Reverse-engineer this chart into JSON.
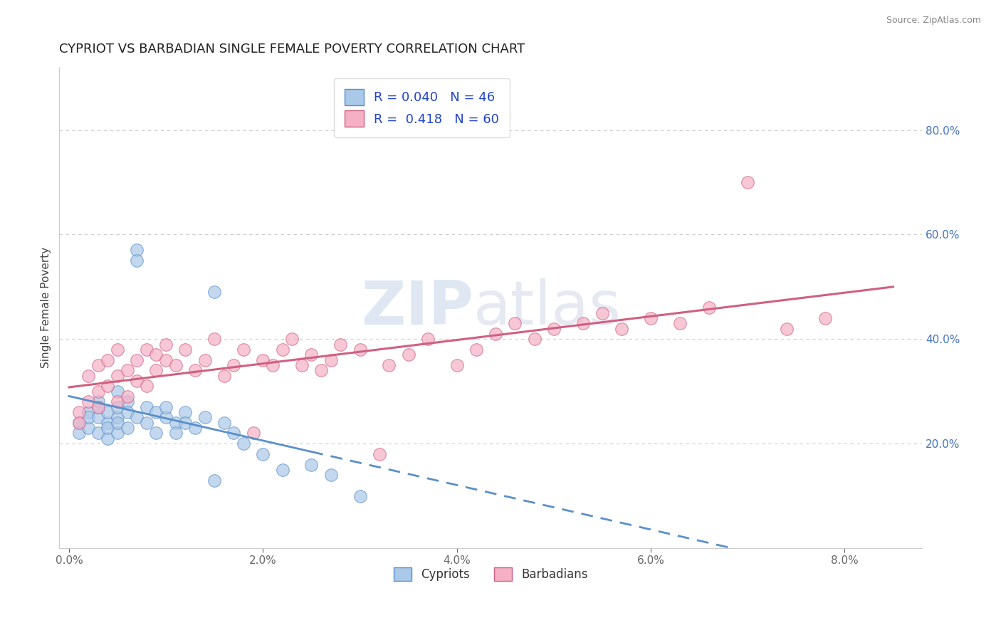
{
  "title": "CYPRIOT VS BARBADIAN SINGLE FEMALE POVERTY CORRELATION CHART",
  "source": "Source: ZipAtlas.com",
  "ylabel": "Single Female Poverty",
  "x_tick_labels": [
    "0.0%",
    "2.0%",
    "4.0%",
    "6.0%",
    "8.0%"
  ],
  "x_tick_values": [
    0.0,
    0.02,
    0.04,
    0.06,
    0.08
  ],
  "y_tick_labels_right": [
    "20.0%",
    "40.0%",
    "60.0%",
    "80.0%"
  ],
  "y_tick_values": [
    0.2,
    0.4,
    0.6,
    0.8
  ],
  "xlim": [
    -0.001,
    0.088
  ],
  "ylim": [
    0.0,
    0.92
  ],
  "legend_labels": [
    "Cypriots",
    "Barbadians"
  ],
  "cypriot_color": "#aac8e8",
  "barbadian_color": "#f5b0c5",
  "cypriot_edge_color": "#5b8fc9",
  "barbadian_edge_color": "#d06080",
  "cypriot_line_color": "#5b8fc9",
  "barbadian_line_color": "#d06080",
  "R_cypriot": 0.04,
  "N_cypriot": 46,
  "R_barbadian": 0.418,
  "N_barbadian": 60,
  "title_color": "#222222",
  "title_fontsize": 13,
  "right_tick_color": "#4472c4",
  "watermark_zip": "ZIP",
  "watermark_atlas": "atlas",
  "background_color": "#ffffff",
  "grid_color": "#cccccc",
  "cypriot_points_x": [
    0.001,
    0.001,
    0.002,
    0.002,
    0.002,
    0.003,
    0.003,
    0.003,
    0.003,
    0.004,
    0.004,
    0.004,
    0.004,
    0.005,
    0.005,
    0.005,
    0.005,
    0.005,
    0.006,
    0.006,
    0.006,
    0.007,
    0.007,
    0.007,
    0.008,
    0.008,
    0.009,
    0.009,
    0.01,
    0.01,
    0.011,
    0.011,
    0.012,
    0.012,
    0.013,
    0.014,
    0.015,
    0.016,
    0.017,
    0.018,
    0.02,
    0.022,
    0.025,
    0.027,
    0.03,
    0.015
  ],
  "cypriot_points_y": [
    0.24,
    0.22,
    0.26,
    0.23,
    0.25,
    0.28,
    0.22,
    0.25,
    0.27,
    0.24,
    0.21,
    0.26,
    0.23,
    0.3,
    0.25,
    0.22,
    0.27,
    0.24,
    0.28,
    0.26,
    0.23,
    0.57,
    0.55,
    0.25,
    0.27,
    0.24,
    0.26,
    0.22,
    0.25,
    0.27,
    0.24,
    0.22,
    0.26,
    0.24,
    0.23,
    0.25,
    0.49,
    0.24,
    0.22,
    0.2,
    0.18,
    0.15,
    0.16,
    0.14,
    0.1,
    0.13
  ],
  "barbadian_points_x": [
    0.001,
    0.001,
    0.002,
    0.002,
    0.003,
    0.003,
    0.003,
    0.004,
    0.004,
    0.005,
    0.005,
    0.005,
    0.006,
    0.006,
    0.007,
    0.007,
    0.008,
    0.008,
    0.009,
    0.009,
    0.01,
    0.01,
    0.011,
    0.012,
    0.013,
    0.014,
    0.015,
    0.016,
    0.017,
    0.018,
    0.019,
    0.02,
    0.021,
    0.022,
    0.023,
    0.024,
    0.025,
    0.026,
    0.027,
    0.028,
    0.03,
    0.032,
    0.033,
    0.035,
    0.037,
    0.04,
    0.042,
    0.044,
    0.046,
    0.048,
    0.05,
    0.053,
    0.055,
    0.057,
    0.06,
    0.063,
    0.066,
    0.07,
    0.074,
    0.078
  ],
  "barbadian_points_y": [
    0.26,
    0.24,
    0.33,
    0.28,
    0.35,
    0.3,
    0.27,
    0.36,
    0.31,
    0.33,
    0.28,
    0.38,
    0.34,
    0.29,
    0.36,
    0.32,
    0.38,
    0.31,
    0.34,
    0.37,
    0.36,
    0.39,
    0.35,
    0.38,
    0.34,
    0.36,
    0.4,
    0.33,
    0.35,
    0.38,
    0.22,
    0.36,
    0.35,
    0.38,
    0.4,
    0.35,
    0.37,
    0.34,
    0.36,
    0.39,
    0.38,
    0.18,
    0.35,
    0.37,
    0.4,
    0.35,
    0.38,
    0.41,
    0.43,
    0.4,
    0.42,
    0.43,
    0.45,
    0.42,
    0.44,
    0.43,
    0.46,
    0.7,
    0.42,
    0.44
  ],
  "cyp_line_solid_end": 0.025,
  "cyp_line_x_start": 0.0,
  "cyp_line_x_end": 0.085,
  "bar_line_x_start": 0.0,
  "bar_line_x_end": 0.085
}
